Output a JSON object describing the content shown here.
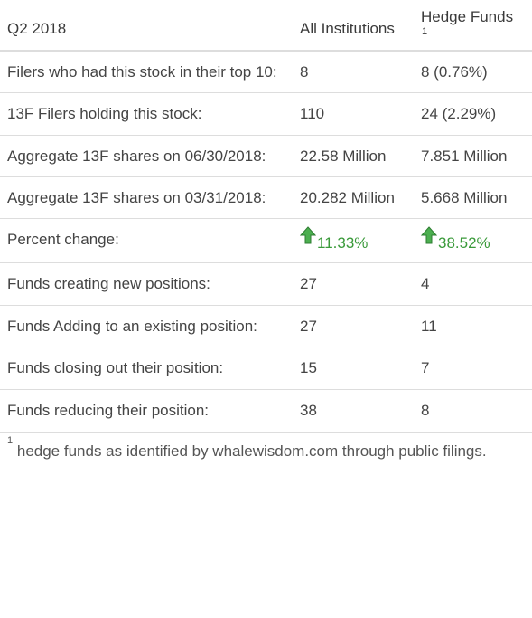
{
  "header": {
    "period": "Q2 2018",
    "col_all": "All Institutions",
    "col_hf": "Hedge Funds",
    "col_hf_note": "1"
  },
  "rows": [
    {
      "label": "Filers who had this stock in their top 10:",
      "all": "8",
      "hf": "8 (0.76%)"
    },
    {
      "label": "13F Filers holding this stock:",
      "all": "110",
      "hf": "24 (2.29%)"
    },
    {
      "label": "Aggregate 13F shares on 06/30/2018:",
      "all": "22.58 Million",
      "hf": "7.851 Million"
    },
    {
      "label": "Aggregate 13F shares on 03/31/2018:",
      "all": "20.282 Million",
      "hf": "5.668 Million"
    },
    {
      "label": "Percent change:",
      "all": "11.33%",
      "hf": "38.52%"
    },
    {
      "label": "Funds creating new positions:",
      "all": "27",
      "hf": "4"
    },
    {
      "label": "Funds Adding to an existing position:",
      "all": "27",
      "hf": "11"
    },
    {
      "label": "Funds closing out their position:",
      "all": "15",
      "hf": "7"
    },
    {
      "label": "Funds reducing their position:",
      "all": "38",
      "hf": "8"
    }
  ],
  "footnote": {
    "mark": "1",
    "text": "hedge funds as identified by whalewisdom.com through public filings."
  },
  "colors": {
    "up_arrow": "#3a9a3a",
    "text": "#444444",
    "divider": "#dddddd"
  },
  "icons": {
    "percent_change_indicator": "up-arrow-icon"
  }
}
